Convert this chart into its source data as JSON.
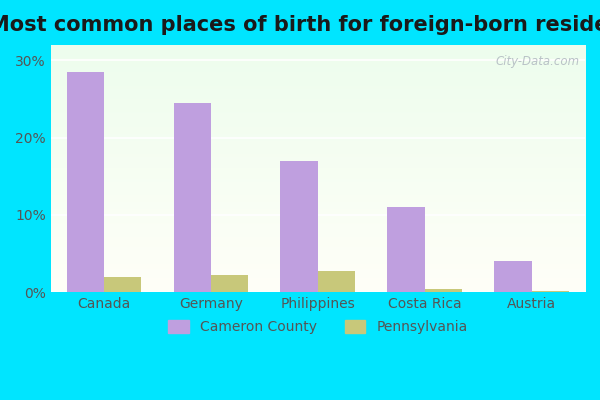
{
  "title": "Most common places of birth for foreign-born residents",
  "categories": [
    "Canada",
    "Germany",
    "Philippines",
    "Costa Rica",
    "Austria"
  ],
  "cameron_county": [
    28.5,
    24.5,
    17.0,
    11.0,
    4.0
  ],
  "pennsylvania": [
    2.0,
    2.2,
    2.8,
    0.4,
    0.2
  ],
  "cameron_color": "#bf9fdf",
  "pennsylvania_color": "#c8c87a",
  "bar_width": 0.35,
  "ylim_max": 32,
  "yticks": [
    0,
    10,
    20,
    30
  ],
  "ytick_labels": [
    "0%",
    "10%",
    "20%",
    "30%"
  ],
  "bg_outer": "#00e5ff",
  "bg_plot_top_color": "#edfded",
  "bg_plot_bottom_color": "#fffff8",
  "title_fontsize": 15,
  "legend_labels": [
    "Cameron County",
    "Pennsylvania"
  ],
  "watermark": "City-Data.com",
  "grid_color": "#ffffff",
  "label_color": "#555555"
}
